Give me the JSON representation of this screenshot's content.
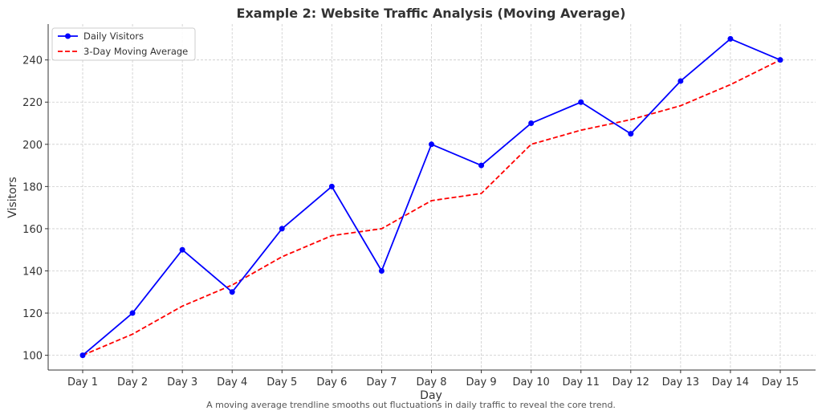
{
  "chart_data": {
    "type": "line",
    "title": "Example 2: Website Traffic Analysis (Moving Average)",
    "xlabel": "Day",
    "ylabel": "Visitors",
    "caption": "A moving average trendline smooths out fluctuations in daily traffic to reveal the core trend.",
    "categories": [
      "Day 1",
      "Day 2",
      "Day 3",
      "Day 4",
      "Day 5",
      "Day 6",
      "Day 7",
      "Day 8",
      "Day 9",
      "Day 10",
      "Day 11",
      "Day 12",
      "Day 13",
      "Day 14",
      "Day 15"
    ],
    "ylim": [
      93,
      257
    ],
    "yticks": [
      100,
      120,
      140,
      160,
      180,
      200,
      220,
      240
    ],
    "grid": true,
    "legend_position": "top-left",
    "series": [
      {
        "name": "Daily Visitors",
        "style": "solid",
        "marker": "circle",
        "color": "#0000ff",
        "values": [
          100,
          120,
          150,
          130,
          160,
          180,
          140,
          200,
          190,
          210,
          220,
          205,
          230,
          250,
          240
        ]
      },
      {
        "name": "3-Day Moving Average",
        "style": "dashed",
        "marker": "none",
        "color": "#ff0000",
        "values": [
          100,
          110,
          123.3,
          133.3,
          146.7,
          156.7,
          160,
          173.3,
          176.7,
          200,
          206.7,
          211.7,
          218.3,
          228.3,
          240
        ]
      }
    ]
  }
}
